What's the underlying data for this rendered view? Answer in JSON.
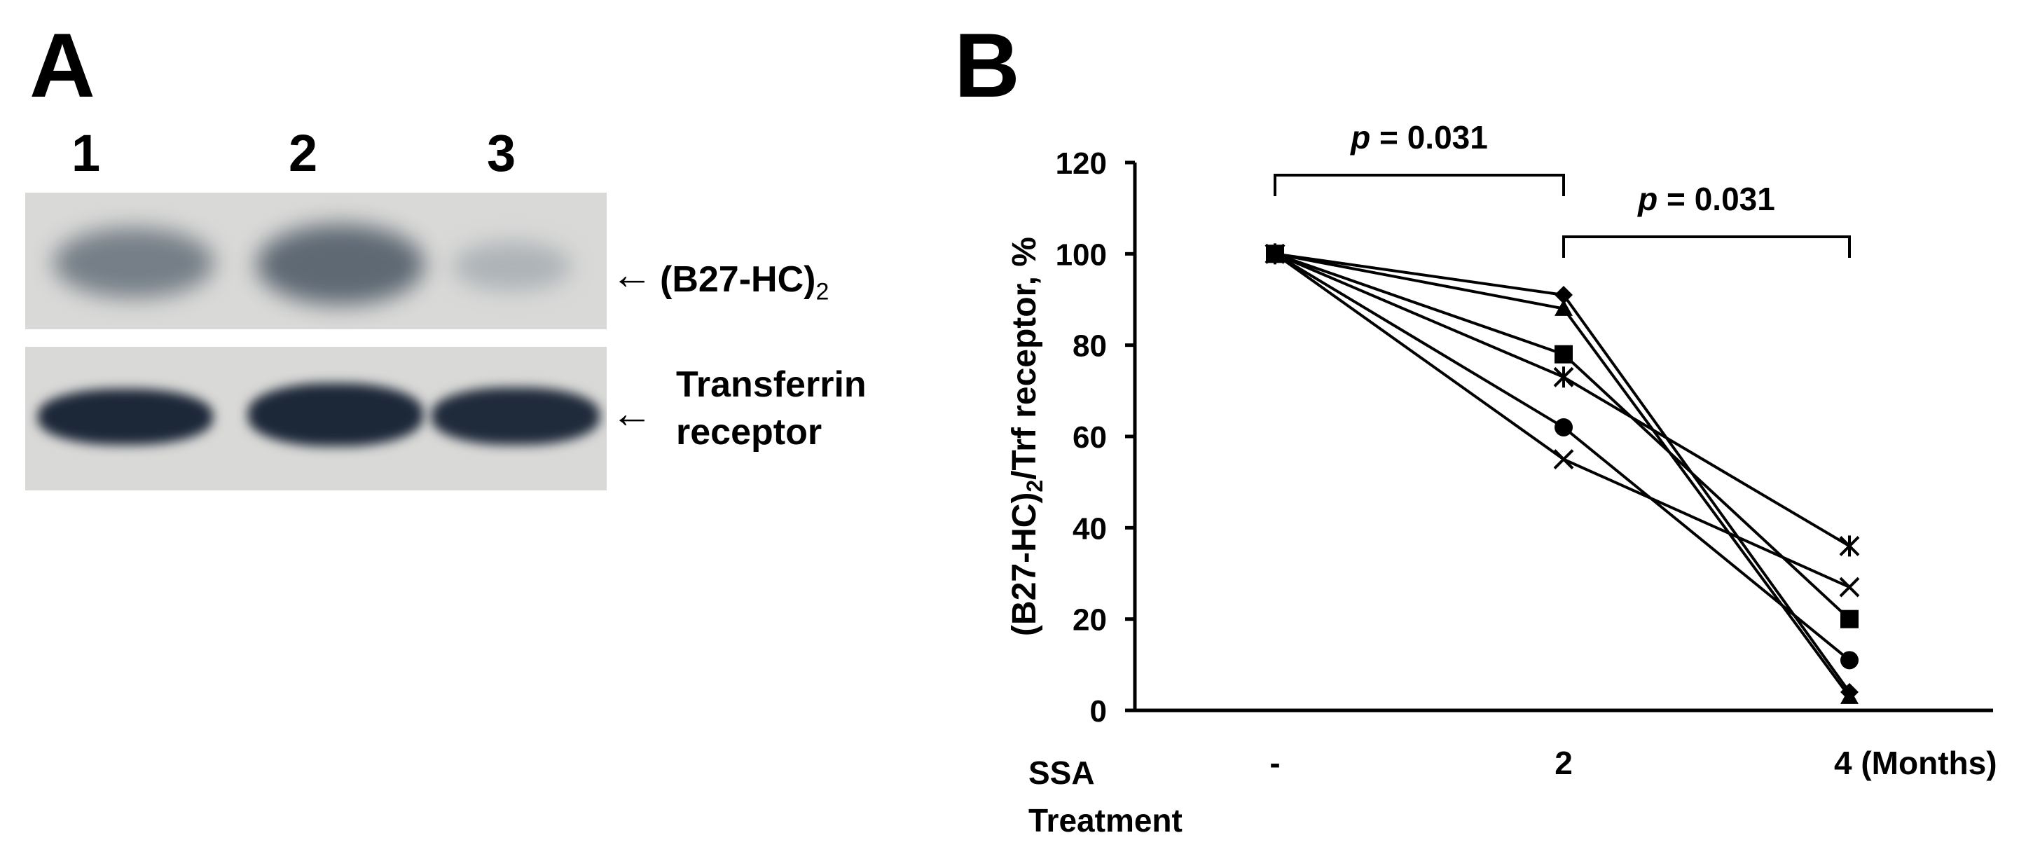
{
  "panel_a": {
    "label": "A",
    "lanes": [
      "1",
      "2",
      "3"
    ],
    "band_labels": {
      "b27_prefix": "(B27-HC)",
      "b27_subscript": "2",
      "transferrin_line1": "Transferrin",
      "transferrin_line2": "receptor"
    },
    "arrow_glyph": "←",
    "colors": {
      "blot_bg": "#d9d9d7",
      "band": "#1c2738"
    }
  },
  "panel_b": {
    "label": "B",
    "x_left_label_line1": "SSA",
    "x_left_label_line2": "Treatment",
    "significance": [
      {
        "p_italic": "p",
        "p_text": " = 0.031",
        "from": 0,
        "to": 1
      },
      {
        "p_italic": "p",
        "p_text": " = 0.031",
        "from": 1,
        "to": 2
      }
    ]
  },
  "chart_data": {
    "type": "line",
    "categories": [
      "-",
      "2",
      "4 (Months)"
    ],
    "ylabel": "(B27-HC)2/Trf receptor, %",
    "ylabel_parts": {
      "a": "(B27-HC)",
      "sub": "2",
      "b": "/Trf receptor, %"
    },
    "ylim": [
      0,
      120
    ],
    "yticks": [
      0,
      20,
      40,
      60,
      80,
      100,
      120
    ],
    "grid": false,
    "series": [
      {
        "marker": "diamond",
        "values": [
          100,
          91,
          4
        ]
      },
      {
        "marker": "triangle",
        "values": [
          100,
          88,
          3
        ]
      },
      {
        "marker": "square",
        "values": [
          100,
          78,
          20
        ]
      },
      {
        "marker": "star",
        "values": [
          100,
          73,
          36
        ]
      },
      {
        "marker": "circle",
        "values": [
          100,
          62,
          11
        ]
      },
      {
        "marker": "x",
        "values": [
          100,
          55,
          27
        ]
      }
    ]
  }
}
